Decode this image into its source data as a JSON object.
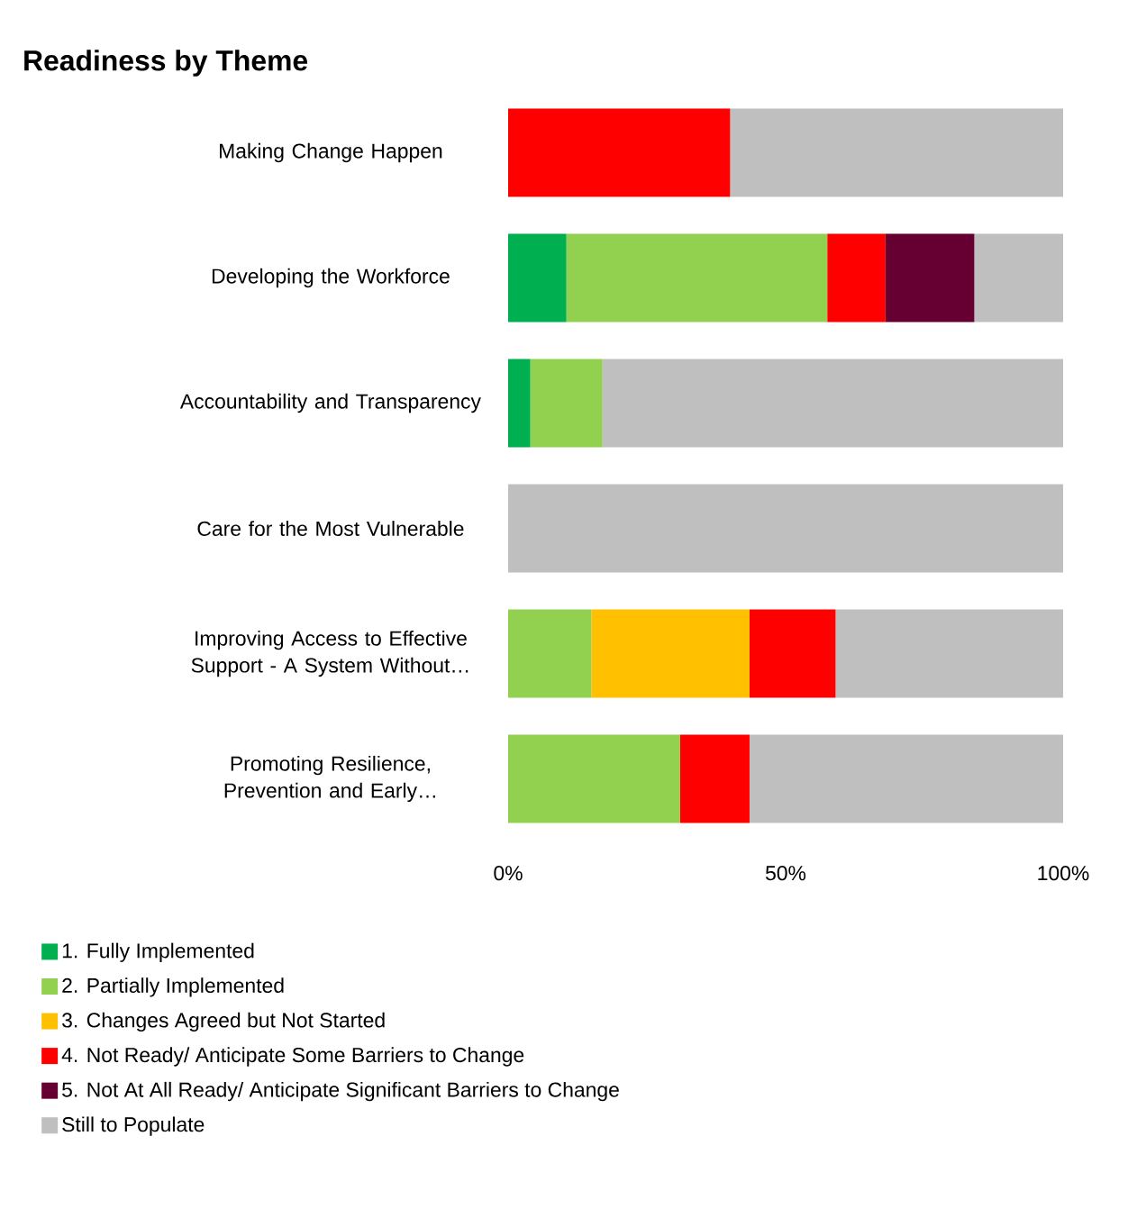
{
  "chart_data": {
    "type": "bar",
    "orientation": "horizontal",
    "stacked": true,
    "title": "Readiness by Theme",
    "categories": [
      "Making Change Happen",
      "Developing the Workforce",
      "Accountability and Transparency",
      "Care for the Most Vulnerable",
      "Improving Access to Effective Support - A System Without…",
      "Promoting Resilience, Prevention and Early…"
    ],
    "series": [
      {
        "name": "1. Fully Implemented",
        "color": "#00b050",
        "values": [
          0,
          10.5,
          4,
          0,
          0,
          0
        ]
      },
      {
        "name": "2. Partially Implemented",
        "color": "#92d050",
        "values": [
          0,
          47,
          13,
          0,
          15,
          31
        ]
      },
      {
        "name": "3. Changes Agreed but Not Started",
        "color": "#ffc000",
        "values": [
          0,
          0,
          0,
          0,
          28.5,
          0
        ]
      },
      {
        "name": "4. Not Ready/ Anticipate Some Barriers to Change",
        "color": "#ff0000",
        "values": [
          40,
          10.5,
          0,
          0,
          15.5,
          12.5
        ]
      },
      {
        "name": "5. Not At All Ready/ Anticipate Significant Barriers to Change",
        "color": "#660033",
        "values": [
          0,
          16,
          0,
          0,
          0,
          0
        ]
      },
      {
        "name": "Still to Populate",
        "color": "#bfbfbf",
        "values": [
          60,
          16,
          83,
          100,
          41,
          56.5
        ]
      }
    ],
    "xlim": [
      0,
      100
    ],
    "xticks": [
      {
        "value": 0,
        "label": "0%"
      },
      {
        "value": 50,
        "label": "50%"
      },
      {
        "value": 100,
        "label": "100%"
      }
    ],
    "legend": "bottom"
  }
}
